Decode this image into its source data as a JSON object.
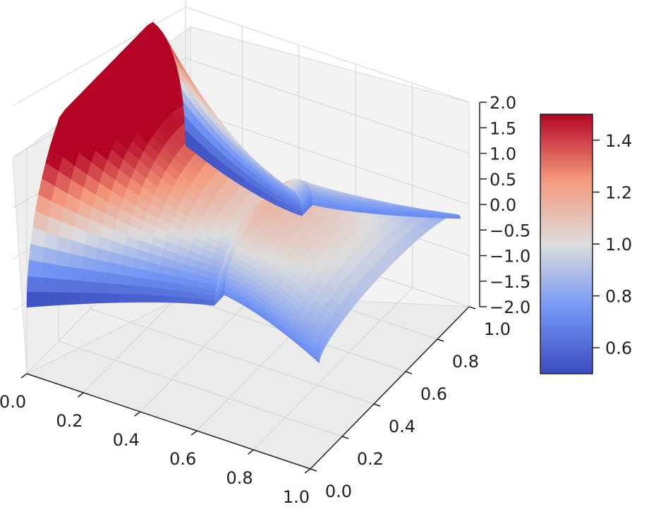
{
  "chart_data": {
    "type": "surface3d",
    "title": "",
    "xlabel": "",
    "ylabel": "",
    "zlabel": "",
    "xlim": [
      0.0,
      1.0
    ],
    "ylim": [
      0.0,
      1.0
    ],
    "zlim": [
      -2.0,
      2.0
    ],
    "x_ticks": [
      "0.0",
      "0.2",
      "0.4",
      "0.6",
      "0.8",
      "1.0"
    ],
    "y_ticks": [
      "0.0",
      "0.2",
      "0.4",
      "0.6",
      "0.8",
      "1.0"
    ],
    "z_ticks": [
      "−2.0",
      "−1.5",
      "−1.0",
      "−0.5",
      "0.0",
      "0.5",
      "1.0",
      "1.5",
      "2.0"
    ],
    "colorbar": {
      "colormap": "coolwarm",
      "range": [
        0.5,
        1.5
      ],
      "ticks": [
        "0.6",
        "0.8",
        "1.0",
        "1.2",
        "1.4"
      ]
    },
    "grid": true,
    "colors": {
      "cold": "#3b4cc0",
      "neutral": "#dddddd",
      "warm": "#b40426",
      "pane": "#f2f2f2",
      "grid": "#d0d0d0"
    }
  }
}
